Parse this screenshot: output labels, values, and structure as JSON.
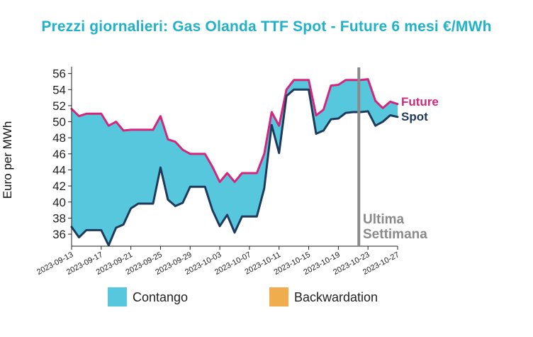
{
  "chart_data": {
    "type": "area",
    "title": "Prezzi giornalieri: Gas Olanda TTF Spot - Future 6 mesi €/MWh",
    "xlabel": "",
    "ylabel": "Euro per MWh",
    "ylim": [
      34.5,
      56.5
    ],
    "yticks": [
      36,
      38,
      40,
      42,
      44,
      46,
      48,
      50,
      52,
      54,
      56
    ],
    "x_tick_labels": [
      "2023-09-13",
      "2023-09-17",
      "2023-09-21",
      "2023-09-25",
      "2023-09-29",
      "2023-10-03",
      "2023-10-07",
      "2023-10-11",
      "2023-10-15",
      "2023-10-19",
      "2023-10-23",
      "2023-10-27"
    ],
    "x": [
      "2023-09-13",
      "2023-09-14",
      "2023-09-15",
      "2023-09-16",
      "2023-09-17",
      "2023-09-18",
      "2023-09-19",
      "2023-09-20",
      "2023-09-21",
      "2023-09-22",
      "2023-09-23",
      "2023-09-24",
      "2023-09-25",
      "2023-09-26",
      "2023-09-27",
      "2023-09-28",
      "2023-09-29",
      "2023-09-30",
      "2023-10-01",
      "2023-10-02",
      "2023-10-03",
      "2023-10-04",
      "2023-10-05",
      "2023-10-06",
      "2023-10-07",
      "2023-10-08",
      "2023-10-09",
      "2023-10-10",
      "2023-10-11",
      "2023-10-12",
      "2023-10-13",
      "2023-10-14",
      "2023-10-15",
      "2023-10-16",
      "2023-10-17",
      "2023-10-18",
      "2023-10-19",
      "2023-10-20",
      "2023-10-21",
      "2023-10-22",
      "2023-10-23",
      "2023-10-24",
      "2023-10-25",
      "2023-10-26",
      "2023-10-27"
    ],
    "series": [
      {
        "name": "Future",
        "color": "#d6267b",
        "values": [
          51.6,
          50.7,
          51.0,
          51.0,
          51.0,
          49.5,
          50.0,
          48.9,
          49.0,
          49.0,
          49.0,
          49.0,
          50.7,
          47.8,
          47.5,
          46.5,
          46.0,
          46.0,
          46.0,
          44.4,
          42.5,
          43.6,
          42.5,
          43.6,
          43.6,
          43.6,
          46.0,
          51.2,
          49.5,
          54.0,
          55.2,
          55.2,
          55.2,
          50.8,
          51.5,
          54.5,
          54.6,
          55.2,
          55.2,
          55.2,
          55.3,
          52.6,
          51.7,
          52.5,
          52.2
        ]
      },
      {
        "name": "Spot",
        "color": "#1e3a5c",
        "values": [
          36.9,
          35.6,
          36.5,
          36.5,
          36.5,
          34.6,
          36.8,
          37.2,
          39.2,
          39.8,
          39.8,
          39.8,
          44.3,
          40.3,
          39.5,
          39.9,
          41.9,
          41.9,
          41.9,
          39.0,
          37.0,
          38.4,
          36.2,
          38.2,
          38.2,
          38.2,
          41.7,
          49.6,
          46.1,
          53.2,
          54.0,
          54.0,
          54.0,
          48.5,
          48.9,
          50.3,
          50.4,
          51.1,
          51.2,
          51.2,
          51.3,
          49.5,
          50.0,
          50.8,
          50.6
        ]
      }
    ],
    "fills": [
      {
        "name": "Contango",
        "color": "#56c7dd"
      },
      {
        "name": "Backwardation",
        "color": "#f0ad4e"
      }
    ],
    "marker": {
      "x": "2023-10-21",
      "label": [
        "Ultima",
        "Settimana"
      ],
      "color": "#8a8a8a"
    },
    "legend_position": "bottom"
  }
}
